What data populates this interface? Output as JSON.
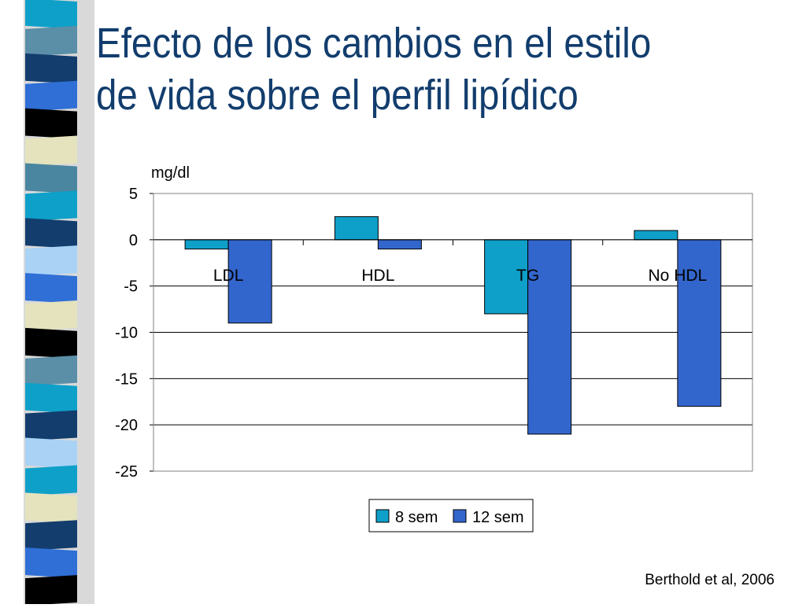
{
  "slide": {
    "title_lines": [
      "Efecto de los cambios en el estilo",
      "de vida sobre el perfil lipídico"
    ],
    "source": "Berthold et al, 2006",
    "stripe_colors": [
      "#0ea0c8",
      "#5b8fa8",
      "#123d6d",
      "#2f6fd6",
      "#000000",
      "#e4e3bd",
      "#4b86a0",
      "#0ea0c8",
      "#123d6d",
      "#a9d2f5",
      "#2f6fd6",
      "#e4e3bd",
      "#000000",
      "#5b8fa8",
      "#0ea0c8",
      "#123d6d",
      "#a9d2f5",
      "#0ea0c8",
      "#e4e3bd",
      "#123d6d",
      "#2f6fd6",
      "#000000"
    ]
  },
  "chart_data": {
    "type": "bar",
    "ylabel": "mg/dl",
    "categories": [
      "LDL",
      "HDL",
      "TG",
      "No HDL"
    ],
    "series": [
      {
        "name": "8 sem",
        "values": [
          -1,
          2.5,
          -8,
          1
        ],
        "color": "#0ea0c8"
      },
      {
        "name": "12 sem",
        "values": [
          -9,
          -1,
          -21,
          -18
        ],
        "color": "#3366cc"
      }
    ],
    "ylim": [
      -25,
      5
    ],
    "yticks": [
      5,
      0,
      -5,
      -10,
      -15,
      -20,
      -25
    ],
    "grid": true,
    "legend": "bottom"
  }
}
